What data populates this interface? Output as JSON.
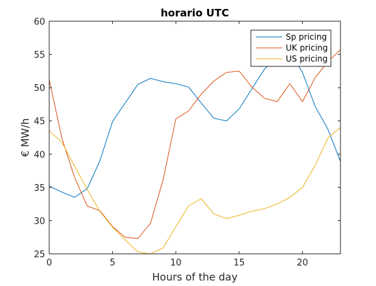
{
  "chart_data": {
    "type": "line",
    "title": "horario UTC",
    "xlabel": "Hours of the day",
    "ylabel": "€ MW/h",
    "xlim": [
      0,
      23
    ],
    "ylim": [
      25,
      60
    ],
    "xticks": [
      0,
      5,
      10,
      15,
      20
    ],
    "yticks": [
      25,
      30,
      35,
      40,
      45,
      50,
      55,
      60
    ],
    "grid": false,
    "legend_position": "top-right",
    "x": [
      0,
      1,
      2,
      3,
      4,
      5,
      6,
      7,
      8,
      9,
      10,
      11,
      12,
      13,
      14,
      15,
      16,
      17,
      18,
      19,
      20,
      21,
      22,
      23
    ],
    "series": [
      {
        "name": "Sp pricing",
        "color": "#0072BD",
        "values": [
          35.2,
          34.3,
          33.5,
          34.8,
          39.0,
          44.9,
          47.7,
          50.5,
          51.4,
          50.9,
          50.6,
          50.1,
          47.7,
          45.4,
          45.0,
          46.8,
          49.8,
          52.8,
          54.5,
          55.3,
          52.3,
          47.2,
          43.8,
          38.9
        ]
      },
      {
        "name": "UK pricing",
        "color": "#D95319",
        "values": [
          51.2,
          42.4,
          36.5,
          32.2,
          31.5,
          29.1,
          27.5,
          27.3,
          29.6,
          36.2,
          45.3,
          46.5,
          49.0,
          51.0,
          52.3,
          52.5,
          50.1,
          48.4,
          47.9,
          50.6,
          47.9,
          51.5,
          53.9,
          55.7
        ]
      },
      {
        "name": "US pricing",
        "color": "#EDB120",
        "values": [
          43.5,
          41.8,
          38.2,
          34.7,
          31.4,
          29.0,
          27.1,
          25.3,
          25.0,
          25.9,
          29.1,
          32.2,
          33.3,
          31.0,
          30.3,
          30.8,
          31.4,
          31.8,
          32.5,
          33.5,
          35.0,
          38.3,
          42.4,
          44.0
        ]
      }
    ]
  }
}
